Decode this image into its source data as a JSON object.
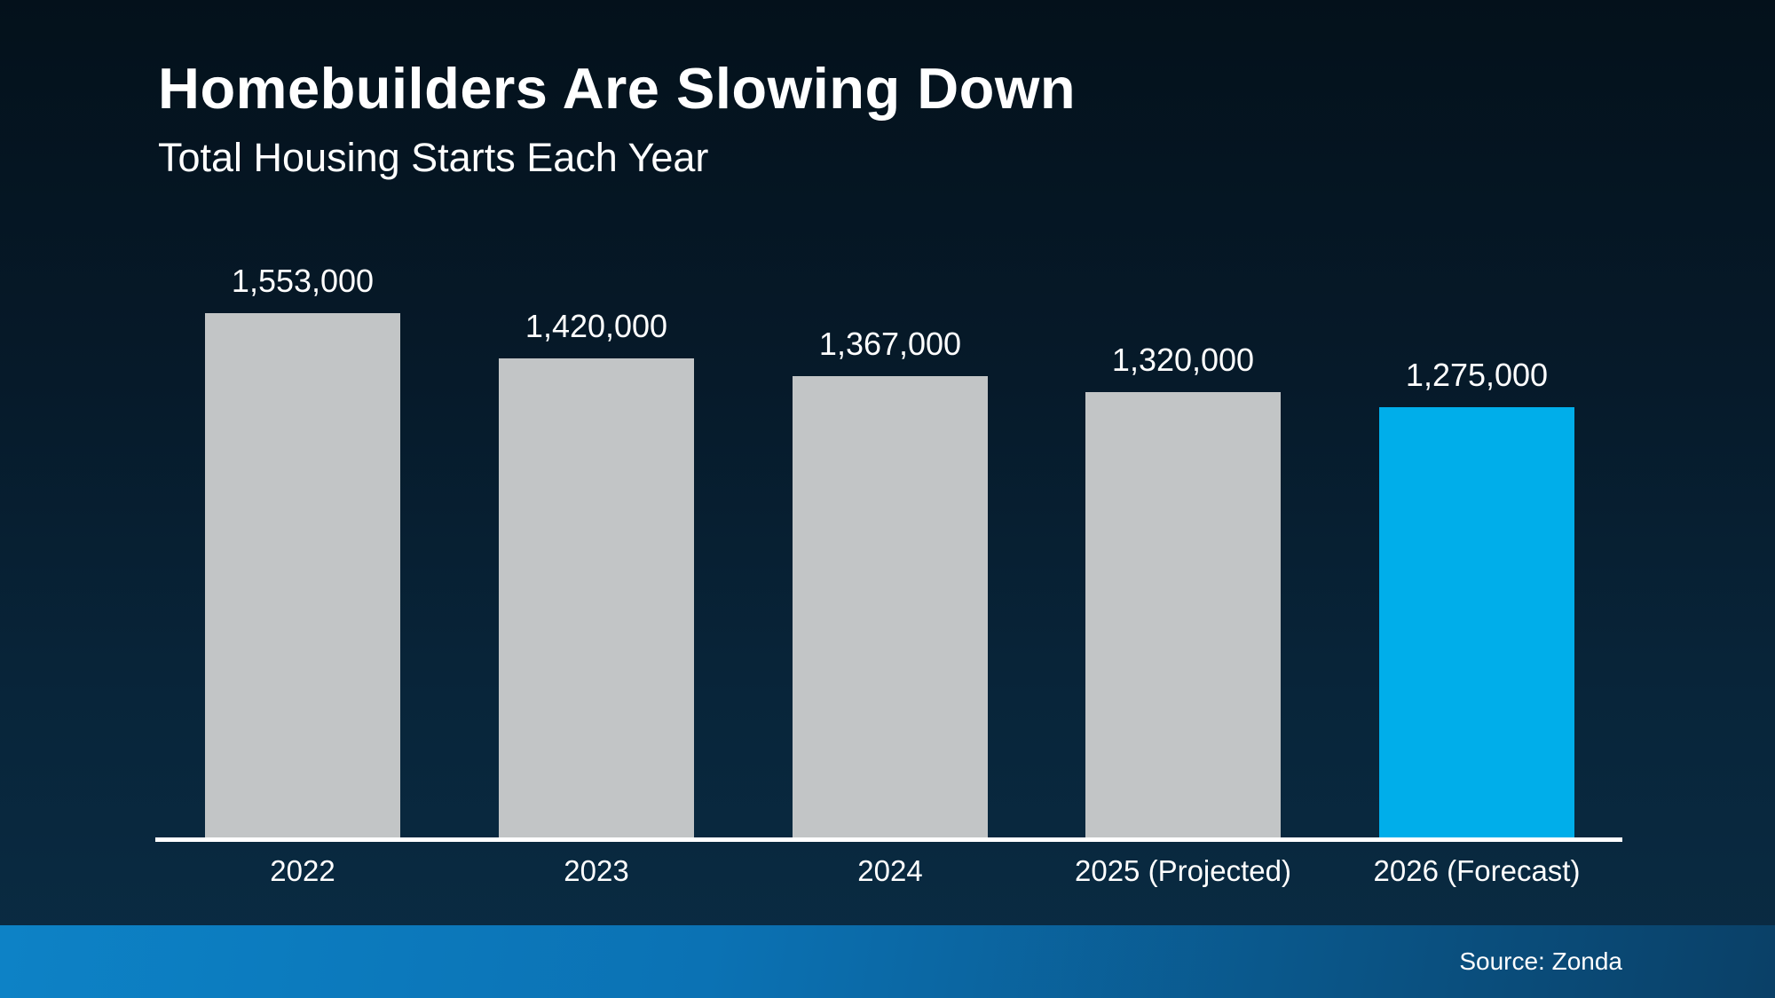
{
  "chart_data": {
    "type": "bar",
    "title": "Homebuilders Are Slowing Down",
    "subtitle": "Total Housing Starts Each Year",
    "categories": [
      "2022",
      "2023",
      "2024",
      "2025 (Projected)",
      "2026 (Forecast)"
    ],
    "values": [
      1553000,
      1420000,
      1367000,
      1320000,
      1275000
    ],
    "value_labels": [
      "1,553,000",
      "1,420,000",
      "1,367,000",
      "1,320,000",
      "1,275,000"
    ],
    "ylim": [
      0,
      1553000
    ],
    "grid": false,
    "legend": "none",
    "bar_color": "#c2c5c6",
    "highlight_color": "#00aeea",
    "highlight_index": 4,
    "axis_color": "#ffffff",
    "source": "Source: Zonda"
  }
}
